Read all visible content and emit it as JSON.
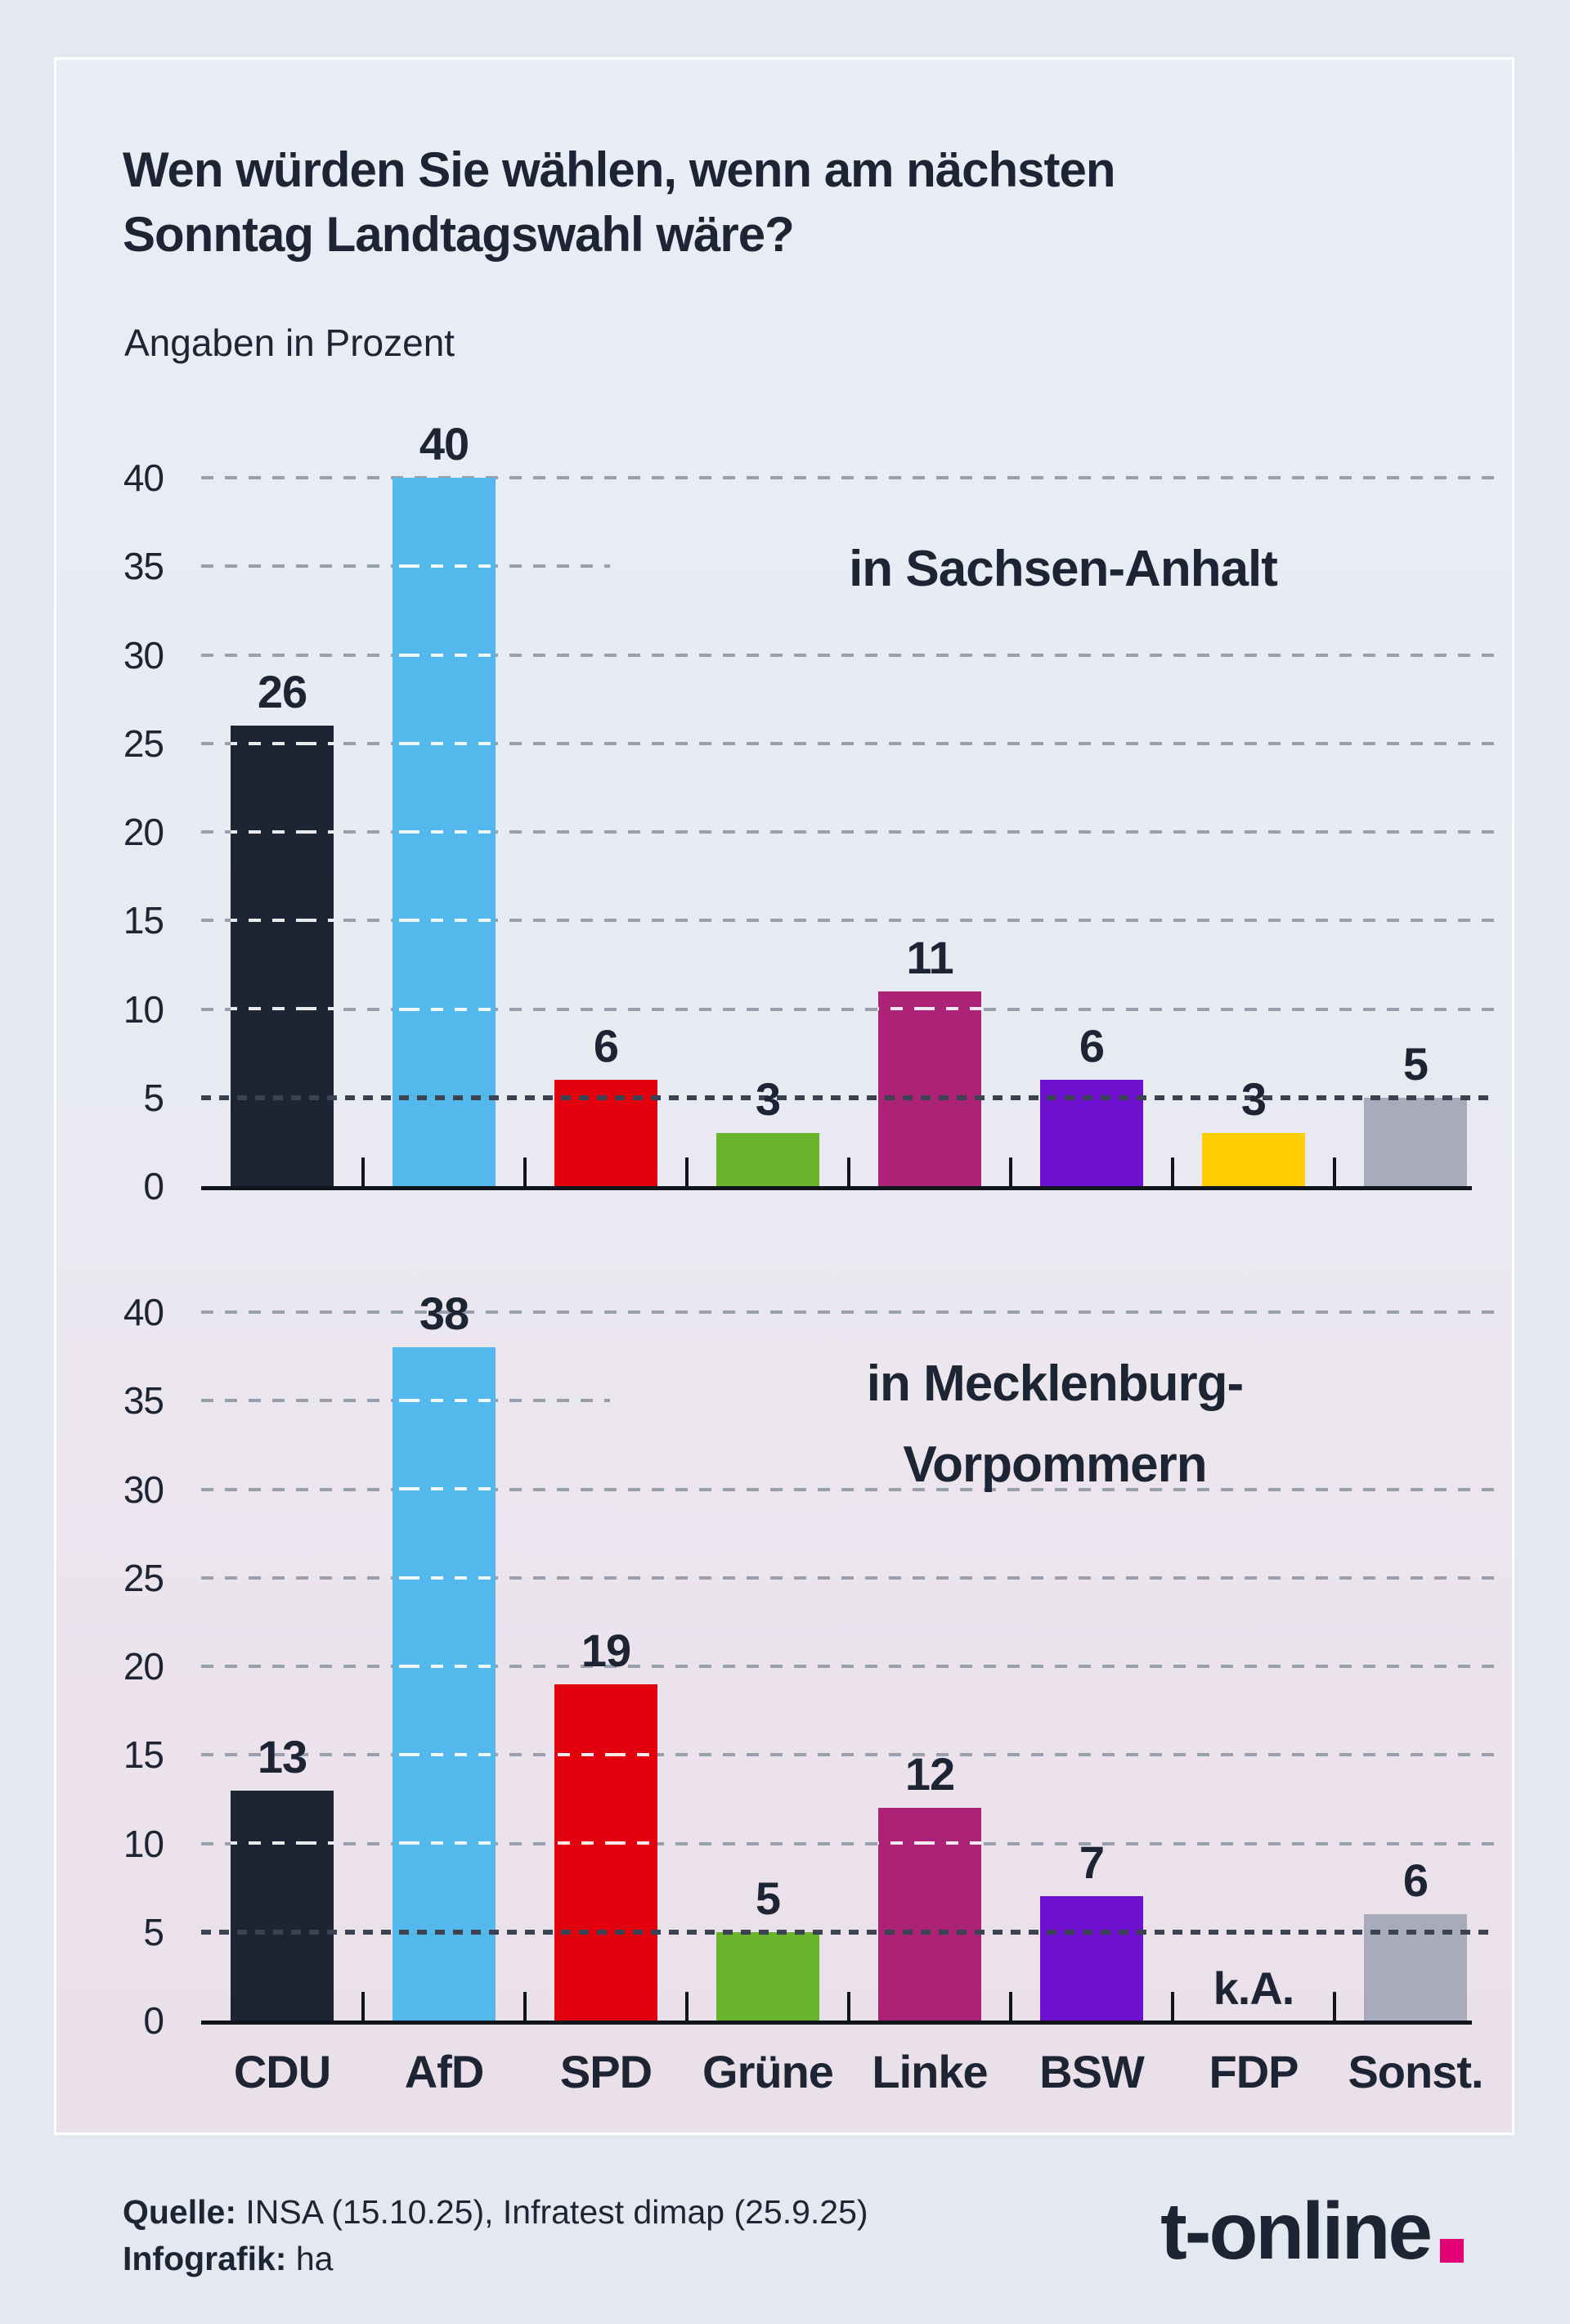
{
  "title": "Wen würden Sie wählen, wenn am nächsten Sonntag Landtagswahl wäre?",
  "subtitle": "Angaben in Prozent",
  "chart_data": [
    {
      "type": "bar",
      "region_label": "in Sachsen-Anhalt",
      "categories": [
        "CDU",
        "AfD",
        "SPD",
        "Grüne",
        "Linke",
        "BSW",
        "FDP",
        "Sonst."
      ],
      "values": [
        26,
        40,
        6,
        3,
        11,
        6,
        3,
        5
      ],
      "ylim": [
        0,
        40
      ],
      "ytick_step": 5,
      "yticks": [
        0,
        5,
        10,
        15,
        20,
        25,
        30,
        35,
        40
      ],
      "threshold_line": 5,
      "grid": "dashed",
      "legend": "none"
    },
    {
      "type": "bar",
      "region_label": "in Mecklenburg-Vorpommern",
      "categories": [
        "CDU",
        "AfD",
        "SPD",
        "Grüne",
        "Linke",
        "BSW",
        "FDP",
        "Sonst."
      ],
      "values": [
        13,
        38,
        19,
        5,
        12,
        7,
        null,
        6
      ],
      "na_label": "k.A.",
      "ylim": [
        0,
        40
      ],
      "ytick_step": 5,
      "yticks": [
        0,
        5,
        10,
        15,
        20,
        25,
        30,
        35,
        40
      ],
      "threshold_line": 5,
      "grid": "dashed",
      "legend": "none"
    }
  ],
  "party_colors": {
    "CDU": "#1d2433",
    "AfD": "#53b8ec",
    "SPD": "#e2000f",
    "Grüne": "#6ab42d",
    "Linke": "#ac2276",
    "BSW": "#6e10d0",
    "FDP": "#ffcd00",
    "Sonst.": "#a7abbc"
  },
  "footer": {
    "lines": [
      {
        "label": "Quelle:",
        "text": " INSA (15.10.25), Infratest dimap (25.9.25)"
      },
      {
        "label": "Infografik:",
        "text": " ha"
      }
    ]
  },
  "logo": {
    "text": "t-online",
    "dot_color": "#e20074"
  }
}
